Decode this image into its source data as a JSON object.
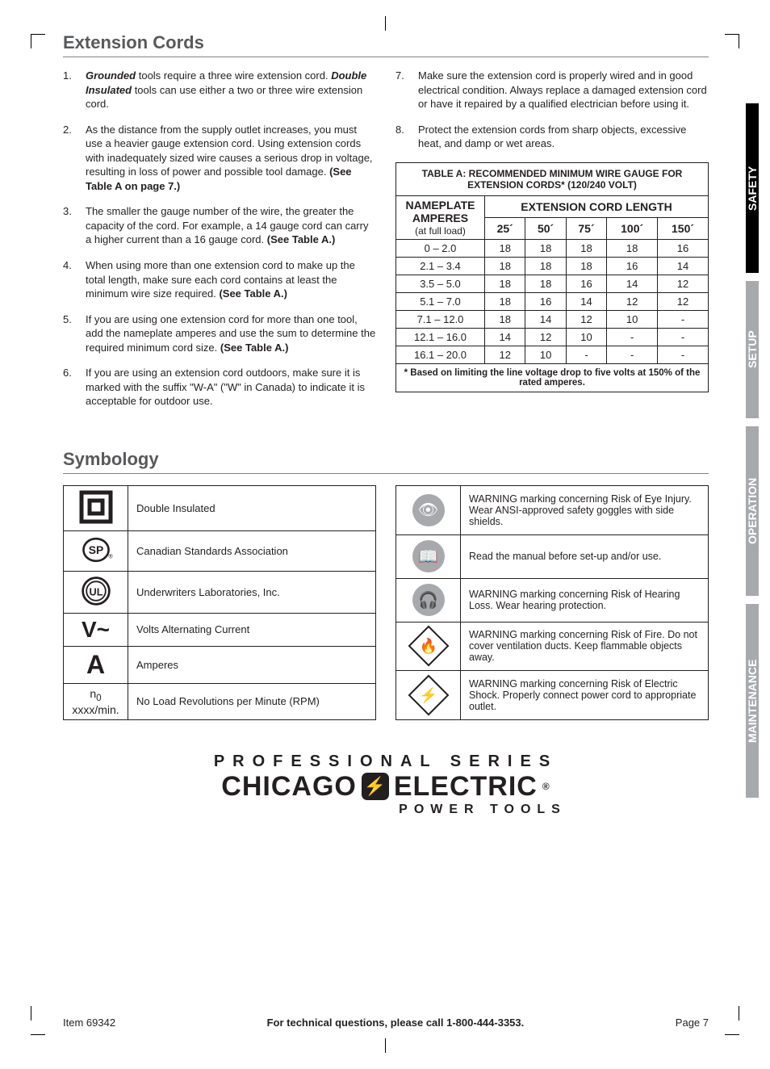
{
  "section1_title": "Extension Cords",
  "instructions_left": [
    {
      "html": "<span class='bold-italic'>Grounded</span> tools require a three wire extension cord. <span class='bold-italic'>Double Insulated</span> tools can use either a two or three wire extension cord."
    },
    {
      "html": "As the distance from the supply outlet increases, you must use a heavier gauge extension cord.  Using extension cords with inadequately sized wire causes a serious drop in voltage, resulting in loss of power and possible tool damage.  <span class='bold'>(See Table A on page 7.)</span>"
    },
    {
      "html": "The smaller the gauge number of the wire, the greater the capacity of the cord.  For example, a 14 gauge cord can carry a higher current than a 16 gauge cord.  <span class='bold'>(See Table A.)</span>"
    },
    {
      "html": "When using more than one extension cord to make up the total length, make sure each cord contains at least the minimum wire size required.  <span class='bold'>(See Table A.)</span>"
    },
    {
      "html": "If you are using one extension cord for more than one tool, add the nameplate amperes and use the sum to determine the required minimum cord size.  <span class='bold'>(See Table A.)</span>"
    },
    {
      "html": "If you are using an extension cord outdoors, make sure it is marked with the suffix \"W-A\" (\"W\" in Canada) to indicate it is acceptable for outdoor use."
    }
  ],
  "instructions_right": [
    {
      "html": "Make sure the extension cord is properly wired and in good electrical condition.  Always replace a damaged extension cord or have it repaired by a qualified electrician before using it."
    },
    {
      "html": "Protect the extension cords from sharp objects, excessive heat, and damp or wet areas."
    }
  ],
  "table_a": {
    "title": "TABLE A:  RECOMMENDED MINIMUM WIRE GAUGE FOR EXTENSION CORDS* (120/240 VOLT)",
    "nameplate_hdr": "NAMEPLATE AMPERES",
    "nameplate_sub": "(at full load)",
    "ext_hdr": "EXTENSION CORD LENGTH",
    "lengths": [
      "25´",
      "50´",
      "75´",
      "100´",
      "150´"
    ],
    "rows": [
      {
        "range": "0 – 2.0",
        "v": [
          "18",
          "18",
          "18",
          "18",
          "16"
        ]
      },
      {
        "range": "2.1 – 3.4",
        "v": [
          "18",
          "18",
          "18",
          "16",
          "14"
        ]
      },
      {
        "range": "3.5 – 5.0",
        "v": [
          "18",
          "18",
          "16",
          "14",
          "12"
        ]
      },
      {
        "range": "5.1 – 7.0",
        "v": [
          "18",
          "16",
          "14",
          "12",
          "12"
        ]
      },
      {
        "range": "7.1 – 12.0",
        "v": [
          "18",
          "14",
          "12",
          "10",
          "-"
        ]
      },
      {
        "range": "12.1 – 16.0",
        "v": [
          "14",
          "12",
          "10",
          "-",
          "-"
        ]
      },
      {
        "range": "16.1 – 20.0",
        "v": [
          "12",
          "10",
          "-",
          "-",
          "-"
        ]
      }
    ],
    "footnote": "* Based on limiting the line voltage drop to five volts at 150% of the rated amperes."
  },
  "section2_title": "Symbology",
  "sym_left": [
    {
      "icon": "double-insulated",
      "text": "Double Insulated"
    },
    {
      "icon": "csa",
      "text": "Canadian Standards Association"
    },
    {
      "icon": "ul",
      "text": "Underwriters Laboratories, Inc."
    },
    {
      "icon": "vac",
      "text": "Volts Alternating Current"
    },
    {
      "icon": "amp",
      "text": "Amperes"
    },
    {
      "icon": "rpm",
      "text": "No Load Revolutions per Minute (RPM)"
    }
  ],
  "sym_right": [
    {
      "icon": "eye",
      "text": "WARNING marking concerning Risk of Eye Injury.  Wear ANSI-approved safety goggles with side shields."
    },
    {
      "icon": "manual",
      "text": "Read the manual before set-up and/or use."
    },
    {
      "icon": "hearing",
      "text": "WARNING marking concerning Risk of Hearing Loss. Wear hearing protection."
    },
    {
      "icon": "fire",
      "text": "WARNING marking concerning Risk of Fire. Do not cover ventilation ducts. Keep flammable objects away."
    },
    {
      "icon": "shock",
      "text": "WARNING marking concerning Risk of Electric Shock. Properly connect power cord to appropriate outlet."
    }
  ],
  "tabs": {
    "safety": "SAFETY",
    "setup": "SETUP",
    "operation": "OPERATION",
    "maintenance": "MAINTENANCE"
  },
  "brand": {
    "series": "PROFESSIONAL SERIES",
    "name1": "CHICAGO",
    "name2": "ELECTRIC",
    "sub": "POWER TOOLS"
  },
  "footer": {
    "left": "Item 69342",
    "center": "For technical questions, please call 1-800-444-3353.",
    "right": "Page 7"
  }
}
